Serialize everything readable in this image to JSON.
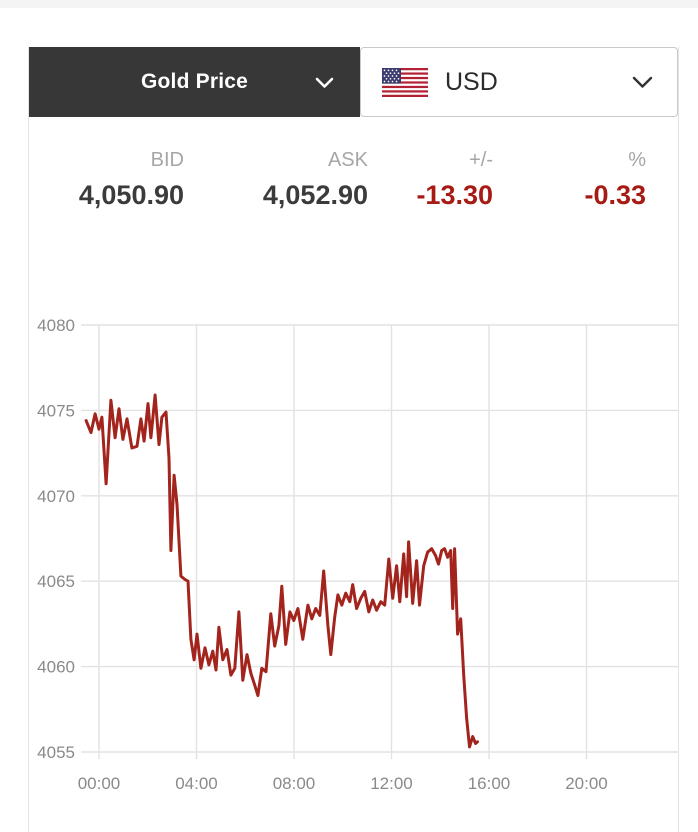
{
  "header": {
    "metal_select": {
      "label": "Gold Price"
    },
    "currency_select": {
      "label": "USD",
      "flag": "us-flag"
    }
  },
  "stats": {
    "columns": [
      {
        "name": "bid",
        "label": "BID",
        "value": "4,050.90",
        "negative": false
      },
      {
        "name": "ask",
        "label": "ASK",
        "value": "4,052.90",
        "negative": false
      },
      {
        "name": "change",
        "label": "+/-",
        "value": "-13.30",
        "negative": true
      },
      {
        "name": "percent",
        "label": "%",
        "value": "-0.33",
        "negative": true
      }
    ]
  },
  "colors": {
    "accent_red": "#a61b14",
    "line_red": "#a3241c",
    "dark_select_bg": "#373737",
    "muted_label": "#a6a6a6",
    "value_text": "#3b3b3b",
    "grid_line": "#e2e2e2",
    "axis_text": "#8a8a8a",
    "border": "#e3e3e3",
    "top_strip": "#f4f4f4",
    "flag_blue": "#3c3b6e",
    "flag_red": "#b22234"
  },
  "chart_data": {
    "type": "line",
    "x_ticks": [
      "00:00",
      "04:00",
      "08:00",
      "12:00",
      "16:00",
      "20:00"
    ],
    "x_tick_hours": [
      0,
      4,
      8,
      12,
      16,
      20
    ],
    "y_ticks": [
      4080,
      4075,
      4070,
      4065,
      4060,
      4055
    ],
    "ylim": [
      4055,
      4080
    ],
    "xlim_hours": [
      -0.75,
      24
    ],
    "grid": true,
    "legend": "none",
    "points": [
      [
        -0.53,
        4074.4
      ],
      [
        -0.33,
        4073.7
      ],
      [
        -0.16,
        4074.8
      ],
      [
        0.0,
        4073.9
      ],
      [
        0.12,
        4074.6
      ],
      [
        0.29,
        4070.7
      ],
      [
        0.49,
        4075.6
      ],
      [
        0.66,
        4073.4
      ],
      [
        0.82,
        4075.1
      ],
      [
        0.98,
        4073.3
      ],
      [
        1.15,
        4074.5
      ],
      [
        1.35,
        4072.8
      ],
      [
        1.56,
        4072.9
      ],
      [
        1.72,
        4074.5
      ],
      [
        1.85,
        4073.2
      ],
      [
        2.01,
        4075.4
      ],
      [
        2.13,
        4073.4
      ],
      [
        2.3,
        4075.9
      ],
      [
        2.46,
        4073.0
      ],
      [
        2.58,
        4074.6
      ],
      [
        2.75,
        4074.9
      ],
      [
        2.87,
        4072.2
      ],
      [
        2.95,
        4066.8
      ],
      [
        3.08,
        4071.2
      ],
      [
        3.2,
        4069.5
      ],
      [
        3.36,
        4065.3
      ],
      [
        3.53,
        4065.1
      ],
      [
        3.65,
        4065.0
      ],
      [
        3.77,
        4061.6
      ],
      [
        3.9,
        4060.4
      ],
      [
        4.02,
        4061.9
      ],
      [
        4.18,
        4059.9
      ],
      [
        4.35,
        4061.1
      ],
      [
        4.51,
        4060.1
      ],
      [
        4.67,
        4060.9
      ],
      [
        4.8,
        4059.8
      ],
      [
        4.92,
        4062.3
      ],
      [
        5.08,
        4060.4
      ],
      [
        5.25,
        4061.0
      ],
      [
        5.41,
        4059.5
      ],
      [
        5.57,
        4059.9
      ],
      [
        5.74,
        4063.2
      ],
      [
        5.9,
        4059.2
      ],
      [
        6.07,
        4060.7
      ],
      [
        6.23,
        4059.6
      ],
      [
        6.39,
        4058.9
      ],
      [
        6.52,
        4058.3
      ],
      [
        6.68,
        4059.9
      ],
      [
        6.85,
        4059.7
      ],
      [
        7.05,
        4063.1
      ],
      [
        7.21,
        4061.2
      ],
      [
        7.38,
        4062.4
      ],
      [
        7.5,
        4064.7
      ],
      [
        7.66,
        4061.3
      ],
      [
        7.83,
        4063.2
      ],
      [
        7.99,
        4062.7
      ],
      [
        8.16,
        4063.4
      ],
      [
        8.36,
        4061.6
      ],
      [
        8.57,
        4063.6
      ],
      [
        8.73,
        4062.8
      ],
      [
        8.89,
        4063.4
      ],
      [
        9.06,
        4063.0
      ],
      [
        9.22,
        4065.6
      ],
      [
        9.39,
        4062.4
      ],
      [
        9.51,
        4060.7
      ],
      [
        9.67,
        4062.9
      ],
      [
        9.8,
        4064.2
      ],
      [
        9.96,
        4063.6
      ],
      [
        10.12,
        4064.3
      ],
      [
        10.29,
        4063.8
      ],
      [
        10.41,
        4064.8
      ],
      [
        10.57,
        4063.4
      ],
      [
        10.74,
        4064.0
      ],
      [
        10.9,
        4064.4
      ],
      [
        11.07,
        4063.2
      ],
      [
        11.23,
        4063.9
      ],
      [
        11.39,
        4063.3
      ],
      [
        11.56,
        4063.8
      ],
      [
        11.72,
        4063.6
      ],
      [
        11.89,
        4066.3
      ],
      [
        12.05,
        4064.0
      ],
      [
        12.21,
        4065.9
      ],
      [
        12.34,
        4063.8
      ],
      [
        12.5,
        4066.6
      ],
      [
        12.62,
        4064.1
      ],
      [
        12.7,
        4067.3
      ],
      [
        12.87,
        4063.7
      ],
      [
        13.03,
        4066.2
      ],
      [
        13.15,
        4063.6
      ],
      [
        13.32,
        4065.9
      ],
      [
        13.48,
        4066.7
      ],
      [
        13.65,
        4066.9
      ],
      [
        13.81,
        4066.5
      ],
      [
        13.93,
        4066.0
      ],
      [
        14.06,
        4066.8
      ],
      [
        14.18,
        4066.9
      ],
      [
        14.3,
        4066.4
      ],
      [
        14.43,
        4066.8
      ],
      [
        14.51,
        4063.4
      ],
      [
        14.59,
        4066.9
      ],
      [
        14.71,
        4061.9
      ],
      [
        14.84,
        4062.8
      ],
      [
        14.96,
        4059.5
      ],
      [
        15.08,
        4057.0
      ],
      [
        15.2,
        4055.3
      ],
      [
        15.33,
        4055.9
      ],
      [
        15.45,
        4055.5
      ],
      [
        15.53,
        4055.6
      ]
    ]
  }
}
